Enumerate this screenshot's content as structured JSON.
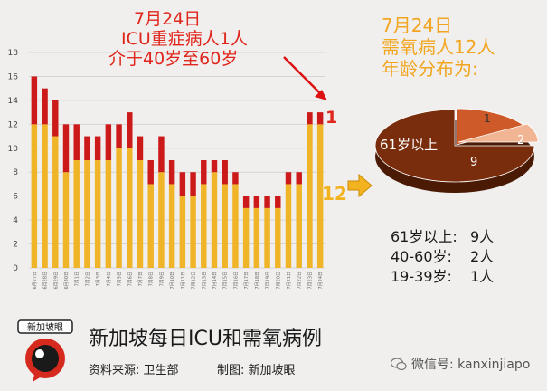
{
  "chart_data": [
    {
      "type": "bar",
      "stacked": true,
      "categories": [
        "6月27日",
        "6月28日",
        "6月29日",
        "6月30日",
        "7月1日",
        "7月2日",
        "7月3日",
        "7月4日",
        "7月5日",
        "7月6日",
        "7月7日",
        "7月8日",
        "7月9日",
        "7月10日",
        "7月11日",
        "7月12日",
        "7月13日",
        "7月14日",
        "7月15日",
        "7月16日",
        "7月17日",
        "7月18日",
        "7月19日",
        "7月20日",
        "7月21日",
        "7月22日",
        "7月23日",
        "7月24日"
      ],
      "series": [
        {
          "color": "#f0b428",
          "values": [
            12,
            12,
            11,
            8,
            9,
            9,
            9,
            9,
            10,
            10,
            9,
            7,
            8,
            7,
            6,
            6,
            7,
            8,
            7,
            7,
            5,
            5,
            5,
            5,
            7,
            7,
            12,
            12
          ]
        },
        {
          "color": "#cc1a1a",
          "values": [
            4,
            3,
            3,
            4,
            3,
            2,
            2,
            3,
            2,
            3,
            2,
            2,
            3,
            2,
            2,
            2,
            2,
            1,
            2,
            1,
            1,
            1,
            1,
            1,
            1,
            1,
            1,
            1
          ]
        }
      ],
      "ylim": [
        0,
        18
      ],
      "yticks": [
        "0",
        "2",
        "4",
        "6",
        "8",
        "10",
        "12",
        "14",
        "16",
        "18"
      ],
      "grid": true
    },
    {
      "type": "pie",
      "labels": [
        "61岁以上",
        "40-60岁",
        "19-39岁"
      ],
      "values": [
        9,
        2,
        1
      ],
      "colors": [
        "#7a2d0c",
        "#cf5a29",
        "#f2b594"
      ]
    }
  ],
  "annotations": {
    "icu_line1": "7月24日",
    "icu_line2": "ICU重症病人1人",
    "icu_line3": "介于40岁至60岁",
    "icu_value": "1",
    "oxygen_value": "12",
    "pie_title_line1": "7月24日",
    "pie_title_line2": "需氧病人12人",
    "pie_title_line3": "年龄分布为:",
    "pie_label_61plus": "61岁以上",
    "pie_value_9": "9",
    "pie_value_2": "2",
    "pie_value_1": "1"
  },
  "age_breakdown": [
    {
      "group": "61岁以上:",
      "count": "9人"
    },
    {
      "group": "40-60岁:",
      "count": "2人"
    },
    {
      "group": "19-39岁:",
      "count": "1人"
    }
  ],
  "footer": {
    "title": "新加坡每日ICU和需氧病例",
    "source": "资料来源:  卫生部",
    "maker": "制图:  新加坡眼",
    "logo_text": "新加坡眼",
    "wechat": "微信号: kanxinjiapo"
  }
}
